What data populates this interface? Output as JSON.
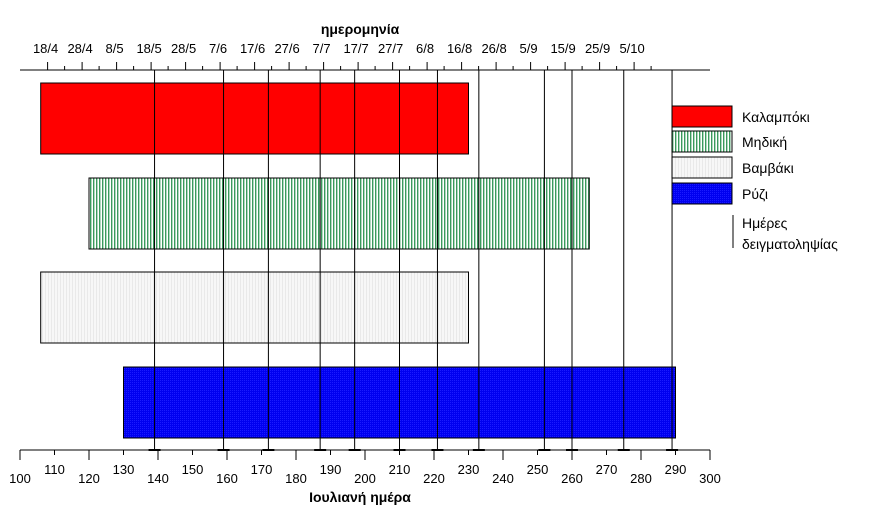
{
  "chart_data": {
    "type": "bar",
    "orientation": "horizontal",
    "xlabel_bottom": "Ιουλιανή ημέρα",
    "xlabel_top": "ημερομηνία",
    "xlim": [
      100,
      300
    ],
    "bottom_ticks_major": [
      100,
      120,
      140,
      160,
      180,
      200,
      220,
      240,
      260,
      280,
      300
    ],
    "bottom_ticks_minor": [
      110,
      130,
      150,
      170,
      190,
      210,
      230,
      250,
      270,
      290
    ],
    "top_ticks": [
      {
        "day": 108,
        "label": "18/4"
      },
      {
        "day": 118,
        "label": "28/4"
      },
      {
        "day": 128,
        "label": "8/5"
      },
      {
        "day": 138,
        "label": "18/5"
      },
      {
        "day": 148,
        "label": "28/5"
      },
      {
        "day": 158,
        "label": "7/6"
      },
      {
        "day": 168,
        "label": "17/6"
      },
      {
        "day": 178,
        "label": "27/6"
      },
      {
        "day": 188,
        "label": "7/7"
      },
      {
        "day": 198,
        "label": "17/7"
      },
      {
        "day": 208,
        "label": "27/7"
      },
      {
        "day": 218,
        "label": "6/8"
      },
      {
        "day": 228,
        "label": "16/8"
      },
      {
        "day": 238,
        "label": "26/8"
      },
      {
        "day": 248,
        "label": "5/9"
      },
      {
        "day": 258,
        "label": "15/9"
      },
      {
        "day": 268,
        "label": "25/9"
      },
      {
        "day": 278,
        "label": "5/10"
      }
    ],
    "series": [
      {
        "name": "Καλαμπόκι",
        "start": 106,
        "end": 230,
        "color": "#ff0000",
        "pattern": "solid"
      },
      {
        "name": "Μηδική",
        "start": 120,
        "end": 265,
        "color": "#3a9a5c",
        "pattern": "vertical-hatch"
      },
      {
        "name": "Βαμβάκι",
        "start": 106,
        "end": 230,
        "color": "#f2f2f2",
        "pattern": "light-hatch"
      },
      {
        "name": "Ρύζι",
        "start": 130,
        "end": 290,
        "color": "#0000ff",
        "pattern": "dotted"
      }
    ],
    "sampling_days": [
      139,
      159,
      172,
      187,
      197,
      210,
      221,
      233,
      252,
      260,
      275,
      289
    ],
    "legend": {
      "placement": "right",
      "sampling_label_line1": "Ημέρες",
      "sampling_label_line2": "δειγματοληψίας"
    }
  }
}
